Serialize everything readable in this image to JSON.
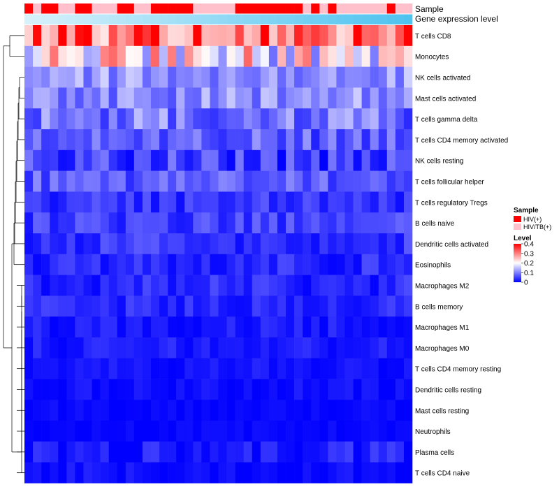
{
  "chart_data": {
    "type": "heatmap",
    "annotation_tracks": [
      "Sample",
      "Gene expression level"
    ],
    "sample_legend": {
      "title": "Sample",
      "entries": [
        {
          "label": "HIV(+)",
          "color": "#ff0000"
        },
        {
          "label": "HIV/TB(+)",
          "color": "#ffc0cb"
        }
      ]
    },
    "level_legend": {
      "title": "Level",
      "ticks": [
        {
          "value": 0.4,
          "label": "0.4"
        },
        {
          "value": 0.3,
          "label": "0.3"
        },
        {
          "value": 0.2,
          "label": "0.2"
        },
        {
          "value": 0.1,
          "label": "0.1"
        },
        {
          "value": 0,
          "label": "0"
        }
      ]
    },
    "color_scale": {
      "low": "#0000ff",
      "mid": "#ffffff",
      "high": "#ff0000",
      "min": 0,
      "mid_value": 0.2,
      "max": 0.4
    },
    "annotation_gradient": [
      "#d7f1fb",
      "#4fc3ef"
    ],
    "sample_groups": [
      0,
      1,
      0,
      0,
      1,
      1,
      0,
      0,
      1,
      1,
      1,
      0,
      0,
      1,
      1,
      0,
      0,
      0,
      0,
      0,
      1,
      1,
      1,
      1,
      1,
      0,
      0,
      0,
      0,
      0,
      0,
      0,
      0,
      1,
      0,
      1,
      0,
      1,
      1,
      1,
      1,
      1,
      1,
      0,
      1,
      1
    ],
    "rows": [
      "T cells CD8",
      "Monocytes",
      "NK cells activated",
      "Mast cells activated",
      "T cells gamma delta",
      "T cells CD4 memory activated",
      "NK cells resting",
      "T cells follicular helper",
      "T cells regulatory  Tregs",
      "B cells naive",
      "Dendritic cells activated",
      "Eosinophils",
      "Macrophages M2",
      "B cells memory",
      "Macrophages M1",
      "Macrophages M0",
      "T cells CD4 memory resting",
      "Dendritic cells resting",
      "Mast cells resting",
      "Neutrophils",
      "Plasma cells",
      "T cells CD4 naive"
    ],
    "row_mean_level": [
      0.32,
      0.2,
      0.12,
      0.11,
      0.09,
      0.07,
      0.05,
      0.07,
      0.04,
      0.05,
      0.04,
      0.03,
      0.03,
      0.03,
      0.02,
      0.02,
      0.015,
      0.01,
      0.005,
      0.005,
      0.02,
      0.01
    ],
    "row_variation": [
      0.1,
      0.12,
      0.05,
      0.05,
      0.06,
      0.05,
      0.05,
      0.04,
      0.03,
      0.035,
      0.03,
      0.03,
      0.03,
      0.025,
      0.02,
      0.02,
      0.015,
      0.015,
      0.01,
      0.008,
      0.03,
      0.02
    ],
    "column_count": 46
  }
}
